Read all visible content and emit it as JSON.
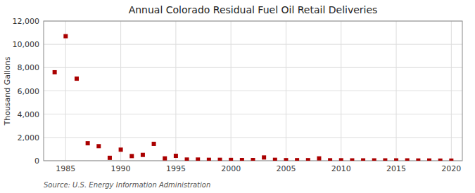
{
  "chart_data": {
    "type": "scatter",
    "title": "Annual Colorado Residual Fuel Oil Retail Deliveries",
    "ylabel": "Thousand Gallons",
    "source": "Source: U.S. Energy Information Administration",
    "x": [
      1984,
      1985,
      1986,
      1987,
      1988,
      1989,
      1990,
      1991,
      1992,
      1993,
      1994,
      1995,
      1996,
      1997,
      1998,
      1999,
      2000,
      2001,
      2002,
      2003,
      2004,
      2005,
      2006,
      2007,
      2008,
      2009,
      2010,
      2011,
      2012,
      2013,
      2014,
      2015,
      2016,
      2017,
      2018,
      2019,
      2020
    ],
    "values": [
      7600,
      10700,
      7050,
      1500,
      1250,
      250,
      950,
      400,
      500,
      1450,
      200,
      420,
      100,
      100,
      80,
      80,
      70,
      60,
      60,
      280,
      80,
      50,
      50,
      50,
      200,
      40,
      40,
      30,
      30,
      30,
      30,
      30,
      30,
      20,
      20,
      10,
      10
    ],
    "color": "#aa0000",
    "marker": "square",
    "xlim": [
      1983,
      2021
    ],
    "xticks": [
      1985,
      1990,
      1995,
      2000,
      2005,
      2010,
      2015,
      2020
    ],
    "ylim": [
      0,
      12000
    ],
    "yticks": [
      0,
      {
        "value": 2000,
        "label": "2,000"
      },
      {
        "value": 4000,
        "label": "4,000"
      },
      {
        "value": 6000,
        "label": "6,000"
      },
      {
        "value": 8000,
        "label": "8,000"
      },
      {
        "value": 10000,
        "label": "10,000"
      },
      {
        "value": 12000,
        "label": "12,000"
      }
    ],
    "grid": true
  }
}
